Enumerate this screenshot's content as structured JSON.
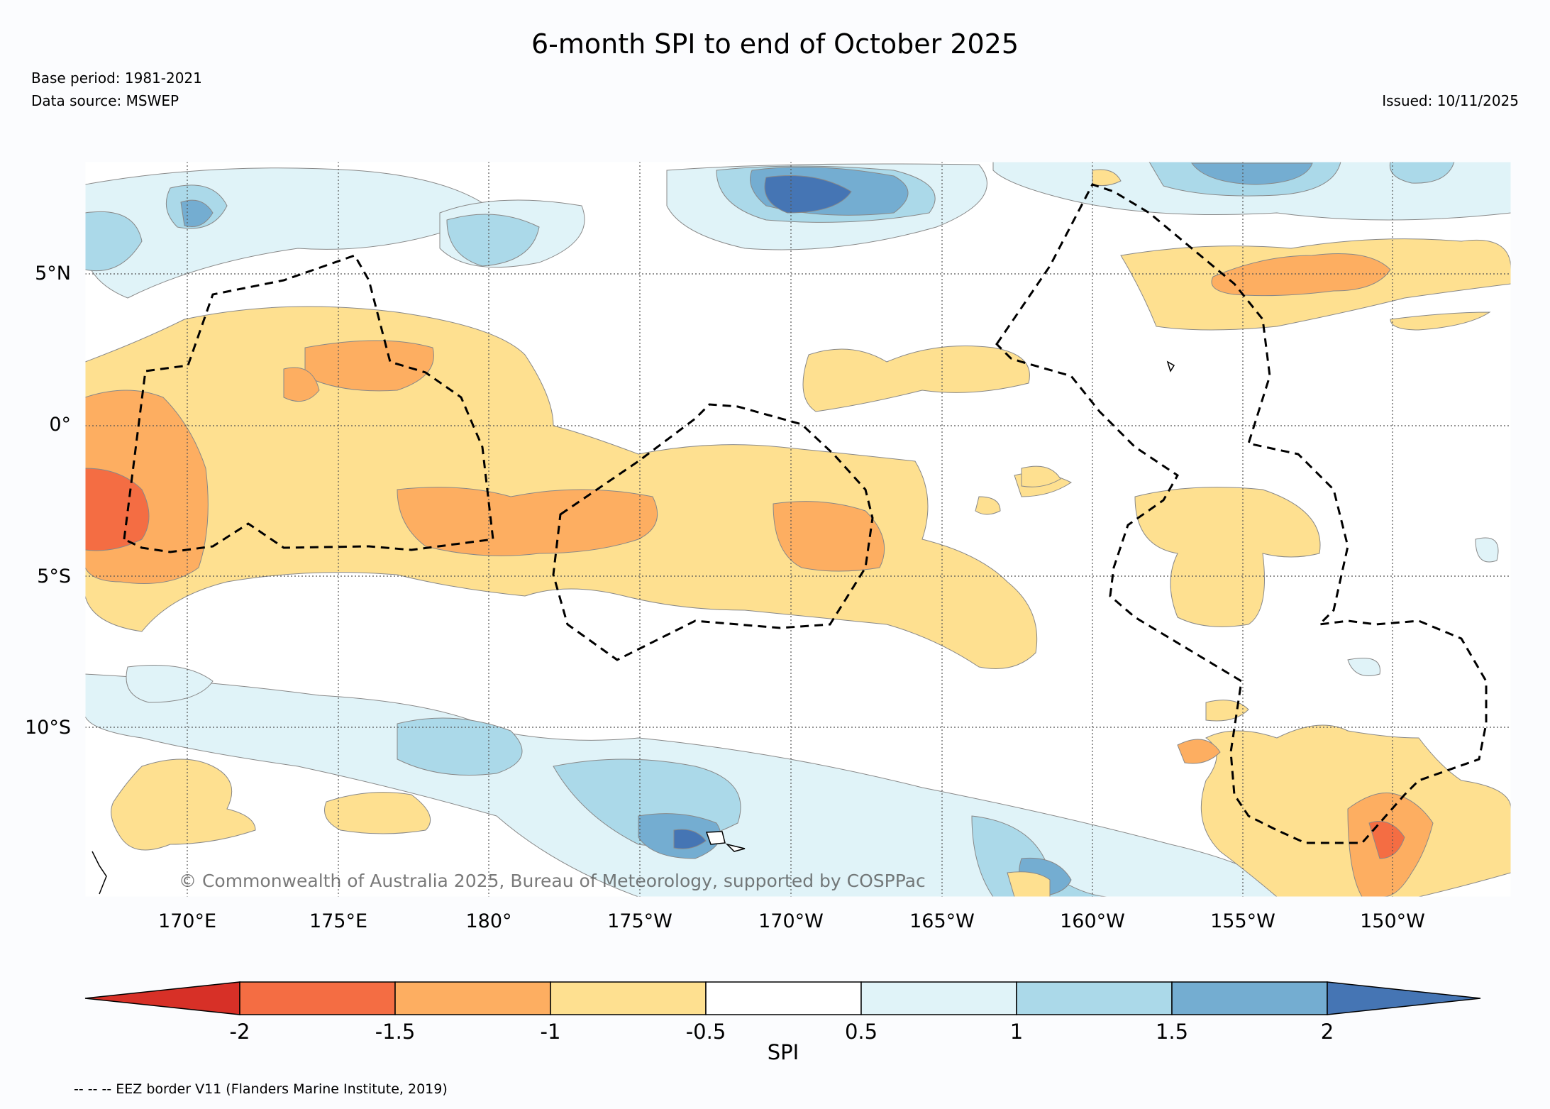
{
  "header": {
    "title": "6-month SPI to end of October 2025",
    "base_period": "Base period: 1981-2021",
    "data_source": "Data source: MSWEP",
    "issued": "Issued: 10/11/2025"
  },
  "map": {
    "copyright": "© Commonwealth of Australia 2025, Bureau of Meteorology, supported by COSPPac",
    "lat_labels": [
      "5°N",
      "0°",
      "5°S",
      "10°S"
    ],
    "lon_labels": [
      "170°E",
      "175°E",
      "180°",
      "175°W",
      "170°W",
      "165°W",
      "160°W",
      "155°W",
      "150°W"
    ]
  },
  "legend": {
    "title": "SPI",
    "ticks": [
      "-2",
      "-1.5",
      "-1",
      "-0.5",
      "0.5",
      "1",
      "1.5",
      "2"
    ],
    "colors": [
      "#d73027",
      "#f46d43",
      "#fdae61",
      "#fee090",
      "#ffffff",
      "#e0f3f8",
      "#abd9e9",
      "#74add1",
      "#4575b4"
    ],
    "eez_note": "-- -- -- EEZ border V11 (Flanders Marine Institute, 2019)"
  }
}
